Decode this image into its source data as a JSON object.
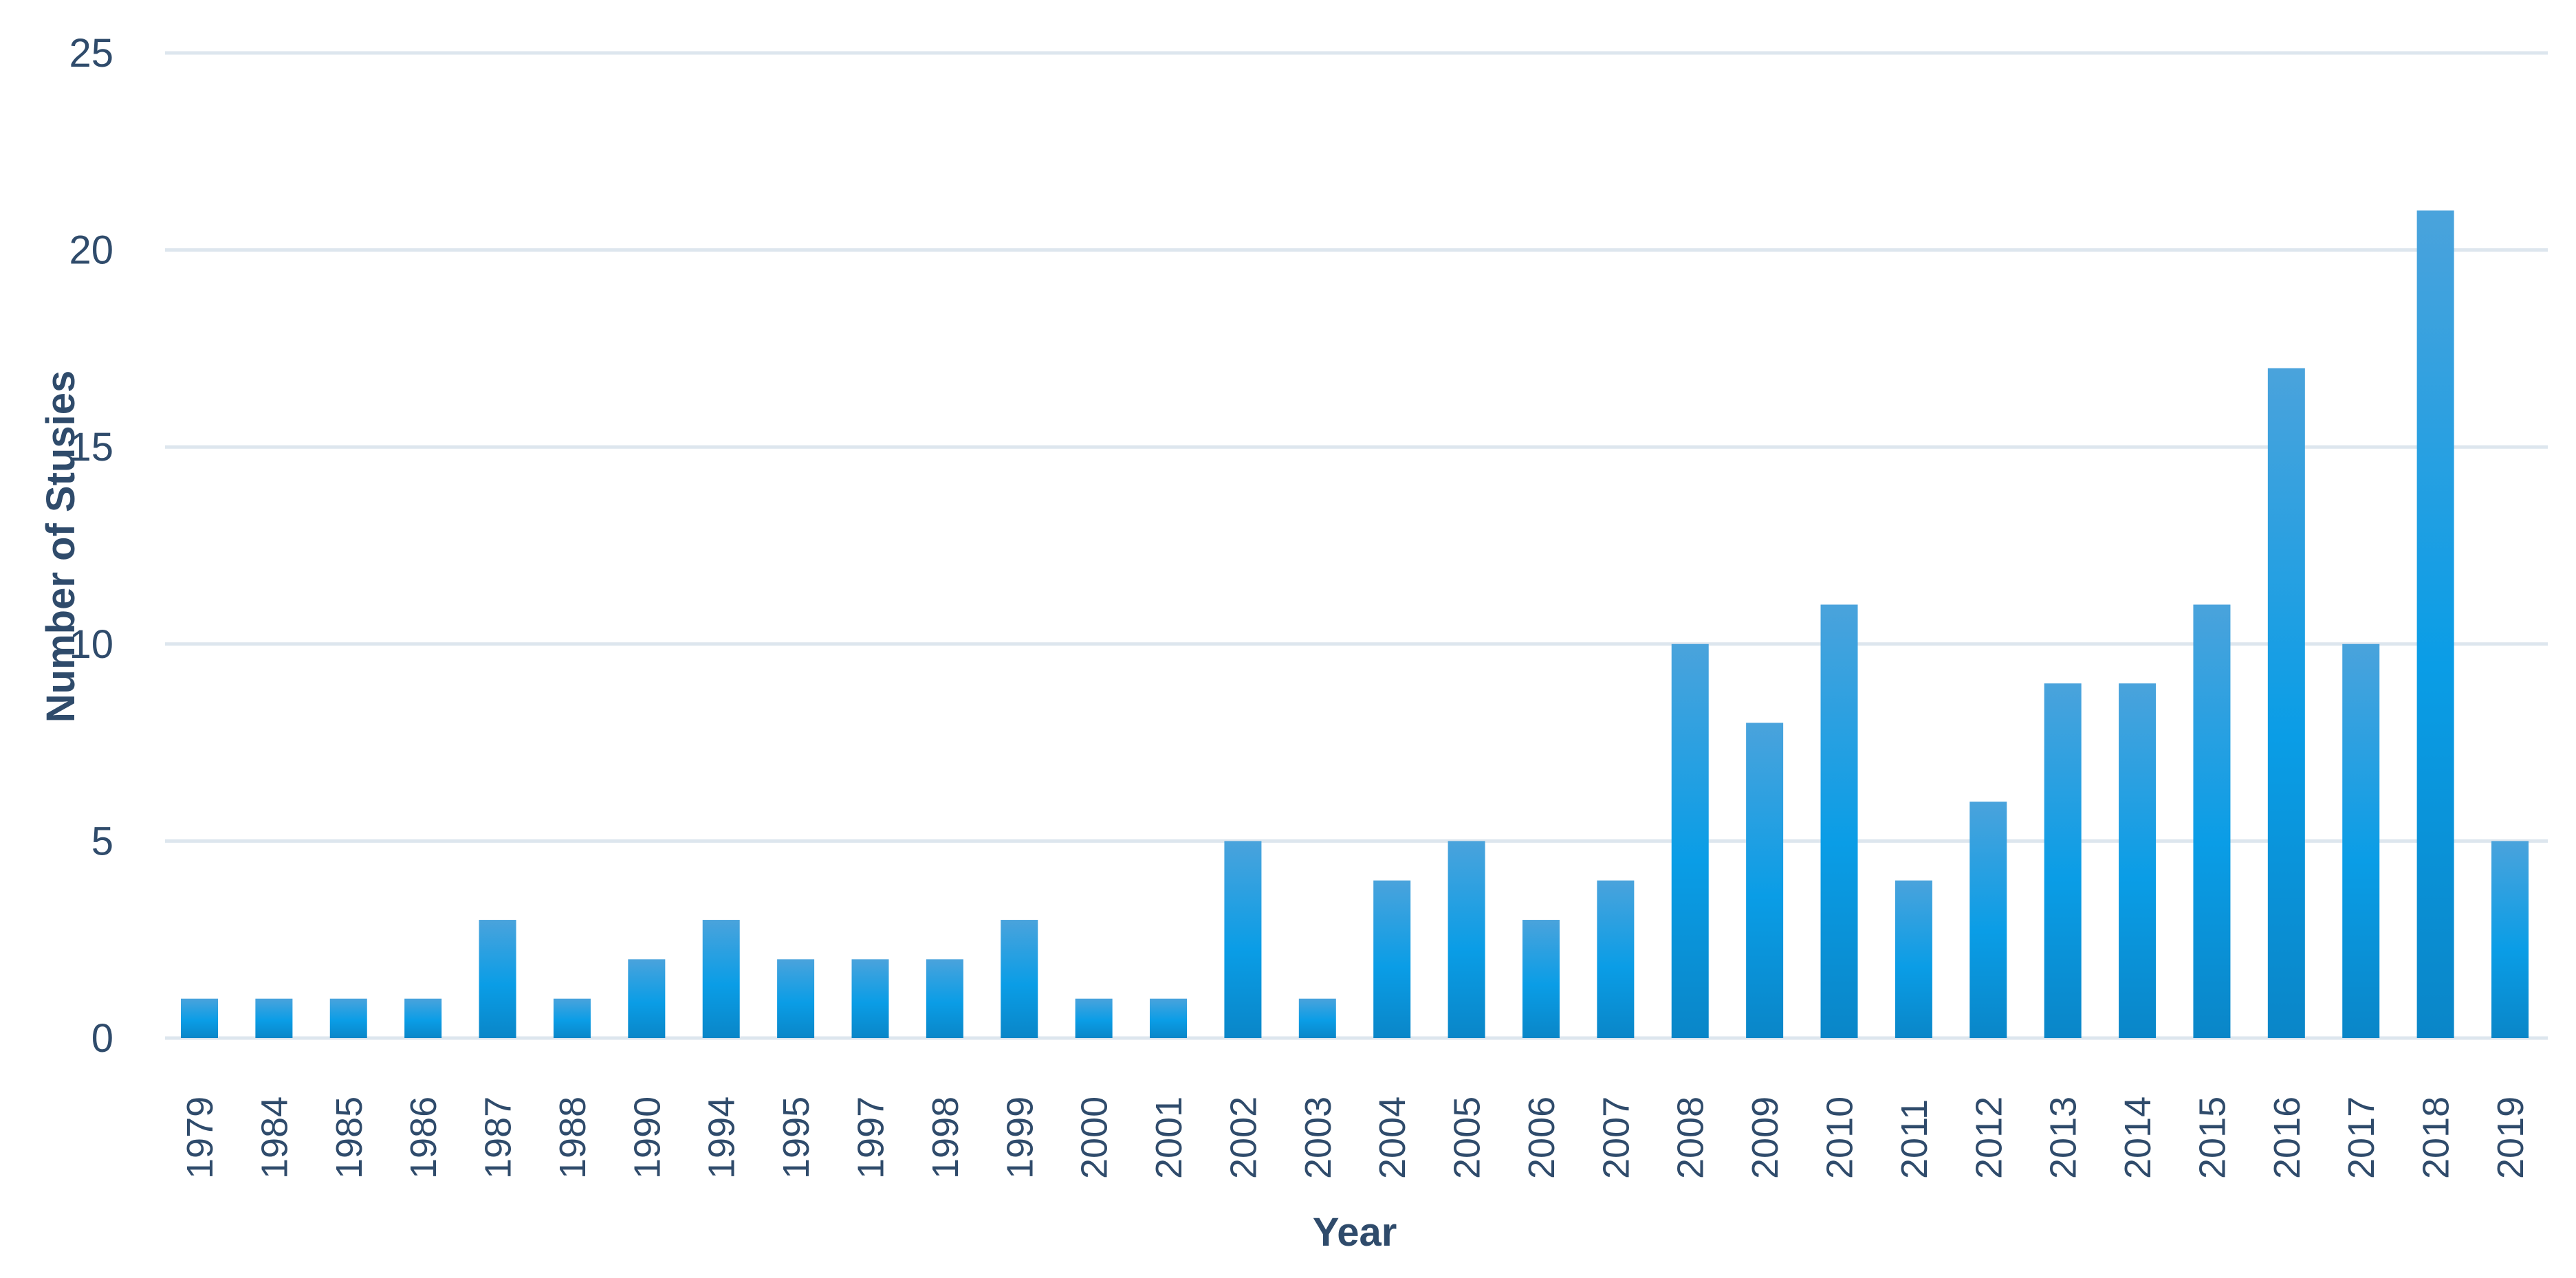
{
  "chart_data": {
    "type": "bar",
    "title": "",
    "xlabel": "Year",
    "ylabel": "Number of Stusies",
    "ylim": [
      0,
      25
    ],
    "yticks": [
      "0",
      "5",
      "10",
      "15",
      "20",
      "25"
    ],
    "grid": true,
    "legend": "none",
    "bar_color_top": "#4aa3dc",
    "bar_color_mid": "#0a9de6",
    "bar_color_bottom": "#0a86c8",
    "categories": [
      "1979",
      "1984",
      "1985",
      "1986",
      "1987",
      "1988",
      "1990",
      "1994",
      "1995",
      "1997",
      "1998",
      "1999",
      "2000",
      "2001",
      "2002",
      "2003",
      "2004",
      "2005",
      "2006",
      "2007",
      "2008",
      "2009",
      "2010",
      "2011",
      "2012",
      "2013",
      "2014",
      "2015",
      "2016",
      "2017",
      "2018",
      "2019"
    ],
    "values": [
      1,
      1,
      1,
      1,
      3,
      1,
      2,
      3,
      2,
      2,
      2,
      3,
      1,
      1,
      5,
      1,
      4,
      5,
      3,
      4,
      10,
      8,
      11,
      4,
      6,
      9,
      9,
      11,
      17,
      10,
      21,
      5
    ]
  }
}
